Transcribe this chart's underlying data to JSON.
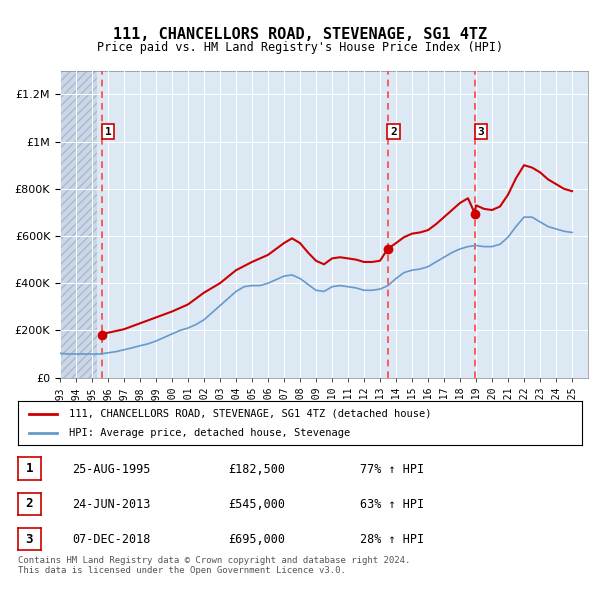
{
  "title": "111, CHANCELLORS ROAD, STEVENAGE, SG1 4TZ",
  "subtitle": "Price paid vs. HM Land Registry's House Price Index (HPI)",
  "ylabel_ticks": [
    "£0",
    "£200K",
    "£400K",
    "£600K",
    "£800K",
    "£1M",
    "£1.2M"
  ],
  "ylim": [
    0,
    1300000
  ],
  "xlim_start": 1993.0,
  "xlim_end": 2026.0,
  "background_color": "#ffffff",
  "plot_bg_color": "#dce9f5",
  "hatch_color": "#c0c0c0",
  "grid_color": "#ffffff",
  "red_line_color": "#cc0000",
  "blue_line_color": "#6699cc",
  "dashed_line_color": "#ff4444",
  "sale_points": [
    {
      "year": 1995.65,
      "price": 182500,
      "label": "1"
    },
    {
      "year": 2013.48,
      "price": 545000,
      "label": "2"
    },
    {
      "year": 2018.93,
      "price": 695000,
      "label": "3"
    }
  ],
  "legend_entries": [
    {
      "label": "111, CHANCELLORS ROAD, STEVENAGE, SG1 4TZ (detached house)",
      "color": "#cc0000"
    },
    {
      "label": "HPI: Average price, detached house, Stevenage",
      "color": "#6699cc"
    }
  ],
  "table_rows": [
    {
      "num": "1",
      "date": "25-AUG-1995",
      "price": "£182,500",
      "change": "77% ↑ HPI"
    },
    {
      "num": "2",
      "date": "24-JUN-2013",
      "price": "£545,000",
      "change": "63% ↑ HPI"
    },
    {
      "num": "3",
      "date": "07-DEC-2018",
      "price": "£695,000",
      "change": "28% ↑ HPI"
    }
  ],
  "footer": "Contains HM Land Registry data © Crown copyright and database right 2024.\nThis data is licensed under the Open Government Licence v3.0.",
  "hpi_data": {
    "years": [
      1993.0,
      1993.5,
      1994.0,
      1994.5,
      1995.0,
      1995.5,
      1996.0,
      1996.5,
      1997.0,
      1997.5,
      1998.0,
      1998.5,
      1999.0,
      1999.5,
      2000.0,
      2000.5,
      2001.0,
      2001.5,
      2002.0,
      2002.5,
      2003.0,
      2003.5,
      2004.0,
      2004.5,
      2005.0,
      2005.5,
      2006.0,
      2006.5,
      2007.0,
      2007.5,
      2008.0,
      2008.5,
      2009.0,
      2009.5,
      2010.0,
      2010.5,
      2011.0,
      2011.5,
      2012.0,
      2012.5,
      2013.0,
      2013.5,
      2014.0,
      2014.5,
      2015.0,
      2015.5,
      2016.0,
      2016.5,
      2017.0,
      2017.5,
      2018.0,
      2018.5,
      2019.0,
      2019.5,
      2020.0,
      2020.5,
      2021.0,
      2021.5,
      2022.0,
      2022.5,
      2023.0,
      2023.5,
      2024.0,
      2024.5,
      2025.0
    ],
    "values": [
      103000,
      100000,
      100000,
      100000,
      100000,
      100000,
      105000,
      110000,
      118000,
      126000,
      135000,
      143000,
      155000,
      170000,
      185000,
      200000,
      210000,
      225000,
      245000,
      275000,
      305000,
      335000,
      365000,
      385000,
      390000,
      390000,
      400000,
      415000,
      430000,
      435000,
      420000,
      395000,
      370000,
      365000,
      385000,
      390000,
      385000,
      380000,
      370000,
      370000,
      375000,
      390000,
      420000,
      445000,
      455000,
      460000,
      470000,
      490000,
      510000,
      530000,
      545000,
      555000,
      560000,
      555000,
      555000,
      565000,
      595000,
      640000,
      680000,
      680000,
      660000,
      640000,
      630000,
      620000,
      615000
    ]
  },
  "price_data": {
    "years": [
      1995.65,
      1996.0,
      1997.0,
      1998.0,
      1999.0,
      2000.0,
      2001.0,
      2002.0,
      2003.0,
      2004.0,
      2005.0,
      2006.0,
      2007.0,
      2007.5,
      2008.0,
      2008.5,
      2009.0,
      2009.5,
      2010.0,
      2010.5,
      2011.0,
      2011.5,
      2012.0,
      2012.5,
      2013.0,
      2013.48,
      2014.0,
      2014.5,
      2015.0,
      2015.5,
      2016.0,
      2016.5,
      2017.0,
      2017.5,
      2018.0,
      2018.5,
      2018.93,
      2019.0,
      2019.5,
      2020.0,
      2020.5,
      2021.0,
      2021.5,
      2022.0,
      2022.5,
      2023.0,
      2023.5,
      2024.0,
      2024.5,
      2025.0
    ],
    "values": [
      182500,
      190000,
      205000,
      230000,
      255000,
      280000,
      310000,
      360000,
      400000,
      455000,
      490000,
      520000,
      570000,
      590000,
      570000,
      530000,
      495000,
      480000,
      505000,
      510000,
      505000,
      500000,
      490000,
      490000,
      495000,
      545000,
      570000,
      595000,
      610000,
      615000,
      625000,
      650000,
      680000,
      710000,
      740000,
      760000,
      695000,
      730000,
      715000,
      710000,
      725000,
      775000,
      845000,
      900000,
      890000,
      870000,
      840000,
      820000,
      800000,
      790000
    ]
  }
}
